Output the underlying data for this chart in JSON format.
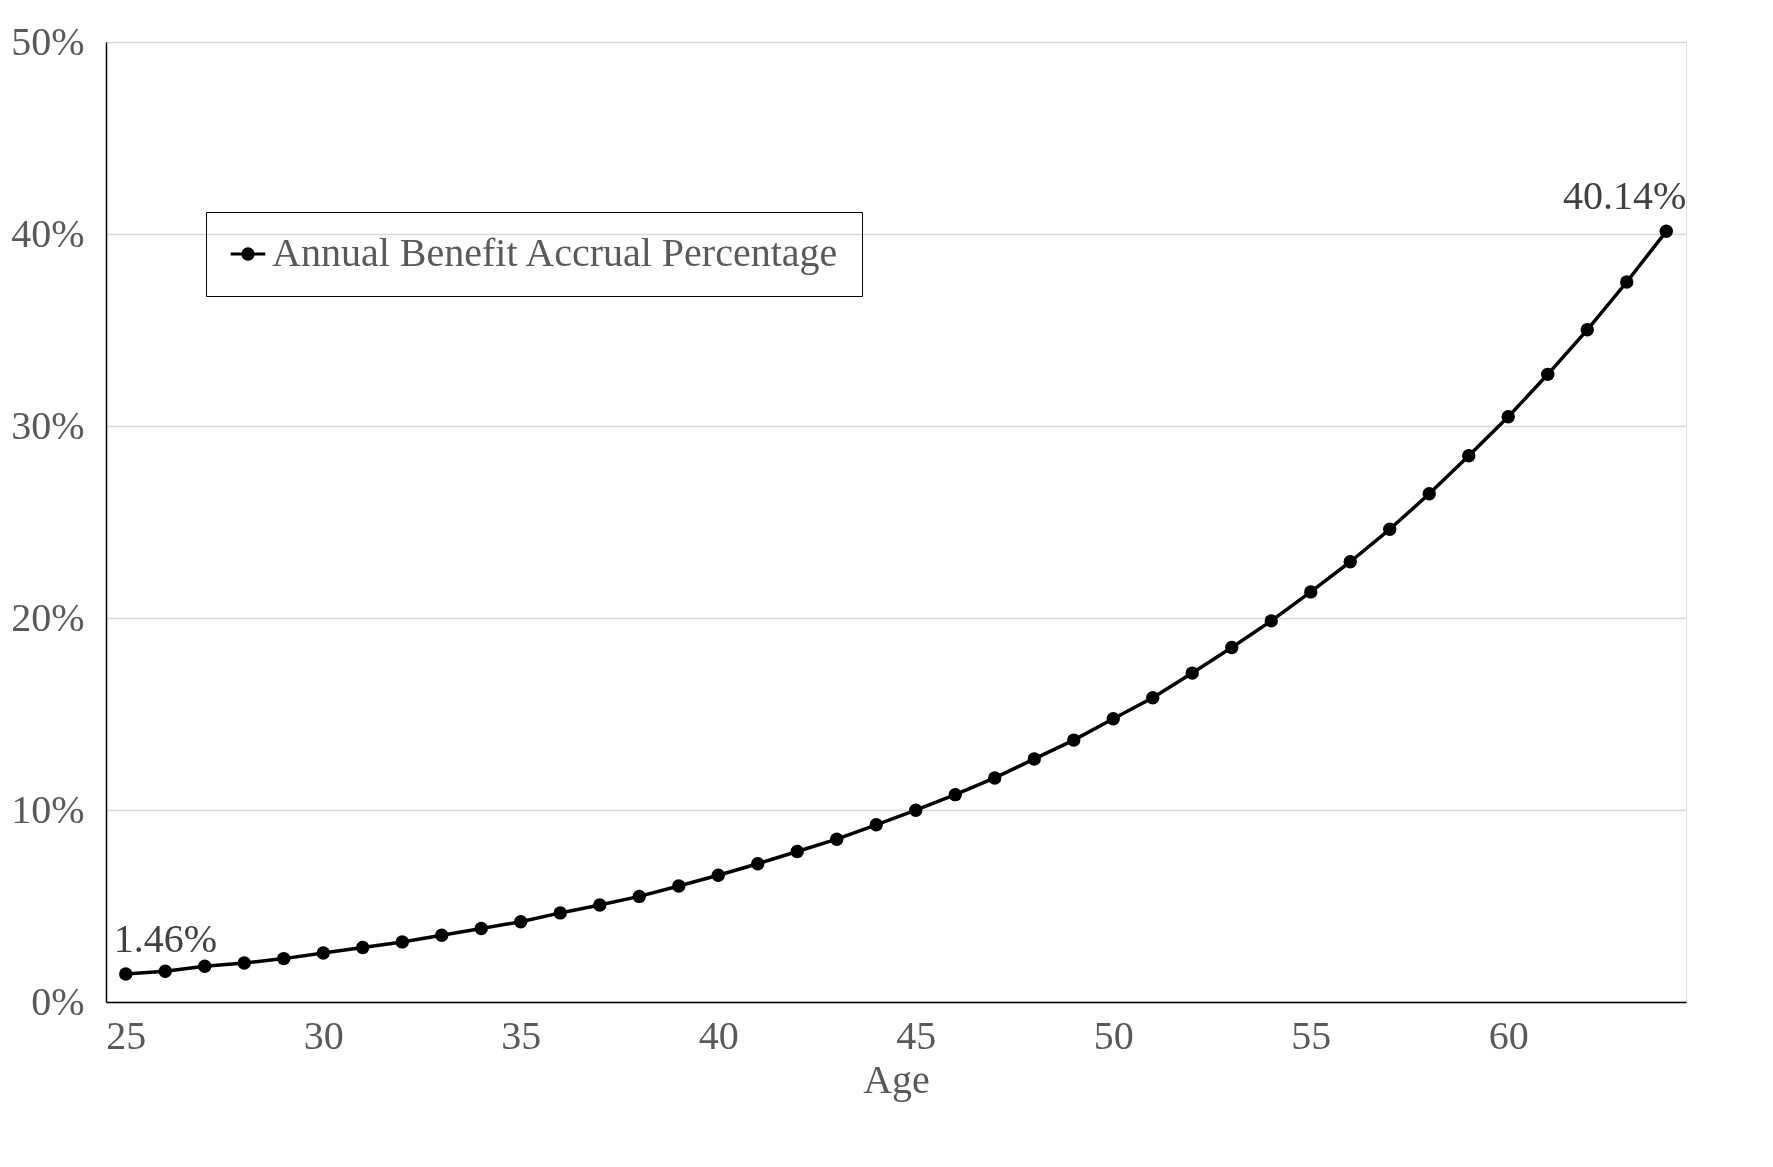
{
  "chart_data": {
    "type": "line",
    "xlabel": "Age",
    "x": [
      25,
      26,
      27,
      28,
      29,
      30,
      31,
      32,
      33,
      34,
      35,
      36,
      37,
      38,
      39,
      40,
      41,
      42,
      43,
      44,
      45,
      46,
      47,
      48,
      49,
      50,
      51,
      52,
      53,
      54,
      55,
      56,
      57,
      58,
      59,
      60,
      61,
      62,
      63,
      64
    ],
    "series": [
      {
        "name": "Annual Benefit Accrual Percentage",
        "color": "#000000",
        "values": [
          1.46,
          1.6,
          1.86,
          2.03,
          2.26,
          2.55,
          2.84,
          3.13,
          3.48,
          3.83,
          4.18,
          4.64,
          5.05,
          5.5,
          6.04,
          6.6,
          7.2,
          7.84,
          8.48,
          9.23,
          9.99,
          10.8,
          11.67,
          12.66,
          13.64,
          14.75,
          15.85,
          17.13,
          18.46,
          19.85,
          21.36,
          22.93,
          24.62,
          26.47,
          28.45,
          30.48,
          32.69,
          35.01,
          37.5,
          40.14
        ],
        "value_labels": [
          "1.46%",
          null,
          null,
          null,
          null,
          null,
          null,
          null,
          null,
          null,
          null,
          null,
          null,
          null,
          null,
          null,
          null,
          null,
          null,
          null,
          null,
          null,
          null,
          null,
          null,
          null,
          null,
          null,
          null,
          null,
          null,
          null,
          null,
          null,
          null,
          null,
          null,
          null,
          null,
          "40.14%"
        ]
      }
    ],
    "xlim": [
      24.5,
      64.5
    ],
    "xticks": [
      25,
      30,
      35,
      40,
      45,
      50,
      55,
      60
    ],
    "ylim": [
      0,
      50
    ],
    "yticks": [
      {
        "value": 0,
        "label": "0%"
      },
      {
        "value": 10,
        "label": "10%"
      },
      {
        "value": 20,
        "label": "20%"
      },
      {
        "value": 30,
        "label": "30%"
      },
      {
        "value": 40,
        "label": "40%"
      },
      {
        "value": 50,
        "label": "50%"
      }
    ],
    "grid": "y",
    "legend": "top left",
    "marker": "circle",
    "line_style": "solid"
  }
}
